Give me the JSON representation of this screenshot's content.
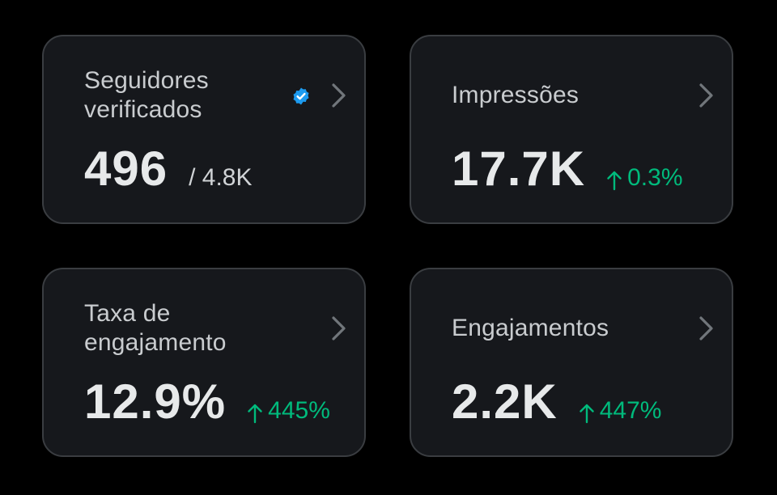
{
  "colors": {
    "background": "#000000",
    "card": "#16181c",
    "card_border": "#3a3d41",
    "label": "#c9cccf",
    "value": "#e7e9ea",
    "positive": "#00ba7c",
    "verified_badge": "#1d9bf0"
  },
  "cards": [
    {
      "label_line1": "Seguidores",
      "label_line2": "verificados",
      "value": "496",
      "sub": "/ 4.8K",
      "badge_icon": "verified-badge-icon",
      "chevron_icon": "chevron-right-icon"
    },
    {
      "label": "Impressões",
      "value": "17.7K",
      "delta": "0.3%",
      "delta_icon": "arrow-up-icon",
      "chevron_icon": "chevron-right-icon"
    },
    {
      "label_line1": "Taxa de",
      "label_line2": "engajamento",
      "value": "12.9%",
      "delta": "445%",
      "delta_icon": "arrow-up-icon",
      "chevron_icon": "chevron-right-icon"
    },
    {
      "label": "Engajamentos",
      "value": "2.2K",
      "delta": "447%",
      "delta_icon": "arrow-up-icon",
      "chevron_icon": "chevron-right-icon"
    }
  ]
}
